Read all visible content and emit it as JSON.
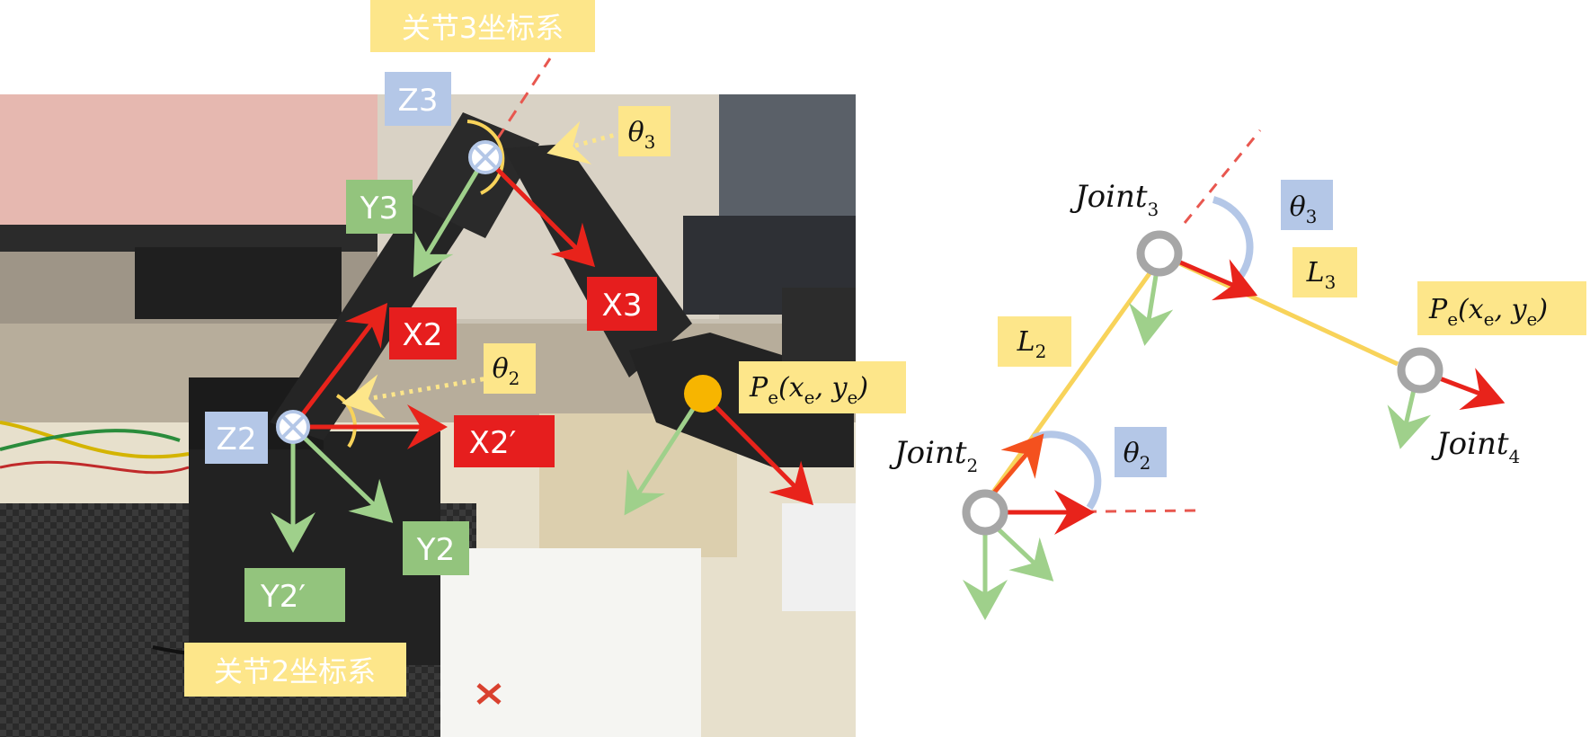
{
  "colors": {
    "label_yellow": "#fde68a",
    "label_blue": "#b4c7e7",
    "label_red": "#e61e1e",
    "label_green": "#93c47d",
    "arrow_red": "#e8231b",
    "arrow_green": "#9fd08b",
    "link_yellow": "#f8d35a",
    "arc_blue": "#b4c7e7",
    "joint_gray": "#a6a6a6",
    "end_orange": "#f7b500"
  },
  "photo": {
    "frame3_label": "关节3坐标系",
    "frame2_label": "关节2坐标系",
    "z3": "Z3",
    "y3": "Y3",
    "x3": "X3",
    "x2": "X2",
    "z2": "Z2",
    "x2p": "X2′",
    "y2": "Y2",
    "y2p": "Y2′",
    "theta3": {
      "sym": "θ",
      "sub": "3"
    },
    "theta2": {
      "sym": "θ",
      "sub": "2"
    },
    "pe": {
      "p": "P",
      "e": "e",
      "rest": "(x",
      "xe": "e",
      "comma": ", y",
      "ye": "e",
      "close": ")"
    }
  },
  "schematic": {
    "joint3": {
      "name": "Joint",
      "sub": "3"
    },
    "joint2": {
      "name": "Joint",
      "sub": "2"
    },
    "joint4": {
      "name": "Joint",
      "sub": "4"
    },
    "theta3": {
      "sym": "θ",
      "sub": "3"
    },
    "theta2": {
      "sym": "θ",
      "sub": "2"
    },
    "l3": {
      "sym": "L",
      "sub": "3"
    },
    "l2": {
      "sym": "L",
      "sub": "2"
    },
    "pe": {
      "p": "P",
      "e": "e",
      "rest": "(x",
      "xe": "e",
      "comma": ", y",
      "ye": "e",
      "close": ")"
    }
  }
}
